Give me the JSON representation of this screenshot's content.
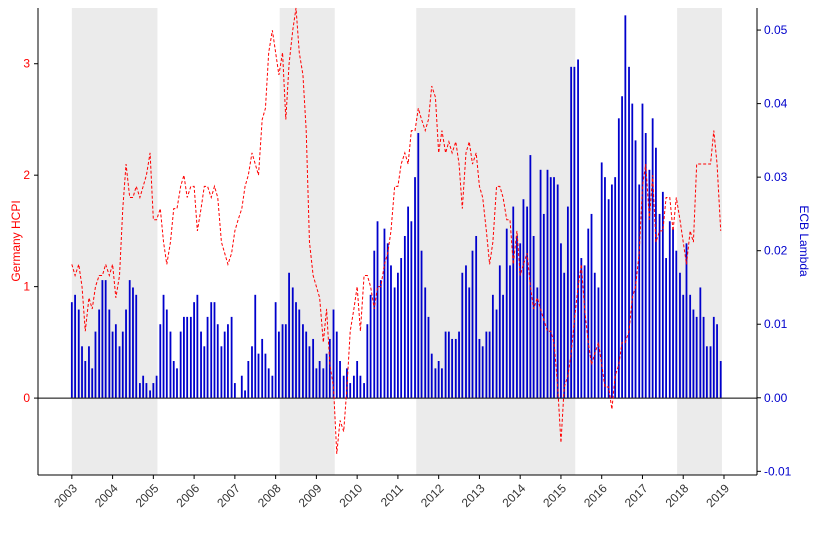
{
  "chart_data": {
    "type": "combo",
    "y_label": "Germany HCPI",
    "y2_label": "ECB Lambda",
    "xlim": [
      2002.17,
      2019.81
    ],
    "xticks": [
      2003,
      2004,
      2005,
      2006,
      2007,
      2008,
      2009,
      2010,
      2011,
      2012,
      2013,
      2014,
      2015,
      2016,
      2017,
      2018,
      2019
    ],
    "ylim": [
      -0.69,
      3.5
    ],
    "yticks": [
      0,
      1,
      2,
      3
    ],
    "y2lim": [
      -0.0105,
      0.053
    ],
    "y2ticks": [
      {
        "value": -0.01,
        "label": "-0.01"
      },
      {
        "value": 0,
        "label": "0.00"
      },
      {
        "value": 0.01,
        "label": "0.01"
      },
      {
        "value": 0.02,
        "label": "0.02"
      },
      {
        "value": 0.03,
        "label": "0.03"
      },
      {
        "value": 0.04,
        "label": "0.04"
      },
      {
        "value": 0.05,
        "label": "0.05"
      }
    ],
    "shaded_periods": [
      [
        2003.0,
        2005.1
      ],
      [
        2008.1,
        2009.45
      ],
      [
        2011.45,
        2015.35
      ],
      [
        2017.85,
        2018.95
      ]
    ],
    "x": [
      2003.0,
      2003.08,
      2003.17,
      2003.25,
      2003.33,
      2003.42,
      2003.5,
      2003.58,
      2003.67,
      2003.75,
      2003.83,
      2003.92,
      2004.0,
      2004.08,
      2004.17,
      2004.25,
      2004.33,
      2004.42,
      2004.5,
      2004.58,
      2004.67,
      2004.75,
      2004.83,
      2004.92,
      2005.0,
      2005.08,
      2005.17,
      2005.25,
      2005.33,
      2005.42,
      2005.5,
      2005.58,
      2005.67,
      2005.75,
      2005.83,
      2005.92,
      2006.0,
      2006.08,
      2006.17,
      2006.25,
      2006.33,
      2006.42,
      2006.5,
      2006.58,
      2006.67,
      2006.75,
      2006.83,
      2006.92,
      2007.0,
      2007.08,
      2007.17,
      2007.25,
      2007.33,
      2007.42,
      2007.5,
      2007.58,
      2007.67,
      2007.75,
      2007.83,
      2007.92,
      2008.0,
      2008.08,
      2008.17,
      2008.25,
      2008.33,
      2008.42,
      2008.5,
      2008.58,
      2008.67,
      2008.75,
      2008.83,
      2008.92,
      2009.0,
      2009.08,
      2009.17,
      2009.25,
      2009.33,
      2009.42,
      2009.5,
      2009.58,
      2009.67,
      2009.75,
      2009.83,
      2009.92,
      2010.0,
      2010.08,
      2010.17,
      2010.25,
      2010.33,
      2010.42,
      2010.5,
      2010.58,
      2010.67,
      2010.75,
      2010.83,
      2010.92,
      2011.0,
      2011.08,
      2011.17,
      2011.25,
      2011.33,
      2011.42,
      2011.5,
      2011.58,
      2011.67,
      2011.75,
      2011.83,
      2011.92,
      2012.0,
      2012.08,
      2012.17,
      2012.25,
      2012.33,
      2012.42,
      2012.5,
      2012.58,
      2012.67,
      2012.75,
      2012.83,
      2012.92,
      2013.0,
      2013.08,
      2013.17,
      2013.25,
      2013.33,
      2013.42,
      2013.5,
      2013.58,
      2013.67,
      2013.75,
      2013.83,
      2013.92,
      2014.0,
      2014.08,
      2014.17,
      2014.25,
      2014.33,
      2014.42,
      2014.5,
      2014.58,
      2014.67,
      2014.75,
      2014.83,
      2014.92,
      2015.0,
      2015.08,
      2015.17,
      2015.25,
      2015.33,
      2015.42,
      2015.5,
      2015.58,
      2015.67,
      2015.75,
      2015.83,
      2015.92,
      2016.0,
      2016.08,
      2016.17,
      2016.25,
      2016.33,
      2016.42,
      2016.5,
      2016.58,
      2016.67,
      2016.75,
      2016.83,
      2016.92,
      2017.0,
      2017.08,
      2017.17,
      2017.25,
      2017.33,
      2017.42,
      2017.5,
      2017.58,
      2017.67,
      2017.75,
      2017.83,
      2017.92,
      2018.0,
      2018.08,
      2018.17,
      2018.25,
      2018.33,
      2018.42,
      2018.5,
      2018.58,
      2018.67,
      2018.75,
      2018.83,
      2018.92
    ],
    "series": [
      {
        "type": "bar",
        "axis": "y2",
        "color": "#0000cc",
        "values": [
          0.013,
          0.014,
          0.012,
          0.007,
          0.005,
          0.007,
          0.004,
          0.009,
          0.012,
          0.016,
          0.016,
          0.012,
          0.009,
          0.01,
          0.007,
          0.009,
          0.012,
          0.016,
          0.015,
          0.014,
          0.002,
          0.003,
          0.002,
          0.001,
          0.002,
          0.003,
          0.01,
          0.014,
          0.012,
          0.009,
          0.005,
          0.004,
          0.009,
          0.011,
          0.011,
          0.011,
          0.013,
          0.014,
          0.009,
          0.007,
          0.011,
          0.013,
          0.013,
          0.01,
          0.007,
          0.009,
          0.01,
          0.011,
          0.002,
          0,
          0.003,
          0.001,
          0.005,
          0.007,
          0.014,
          0.006,
          0.008,
          0.006,
          0.004,
          0.003,
          0.013,
          0.009,
          0.01,
          0.01,
          0.017,
          0.015,
          0.013,
          0.012,
          0.01,
          0.009,
          0.007,
          0.008,
          0.004,
          0.005,
          0.004,
          0.006,
          0.008,
          0.012,
          0.009,
          0.005,
          0.003,
          0.004,
          0.002,
          0.003,
          0.005,
          0.003,
          0.002,
          0.01,
          0.014,
          0.02,
          0.024,
          0.016,
          0.023,
          0.021,
          0.018,
          0.015,
          0.017,
          0.019,
          0.022,
          0.026,
          0.024,
          0.03,
          0.036,
          0.02,
          0.015,
          0.011,
          0.006,
          0.004,
          0.005,
          0.004,
          0.009,
          0.009,
          0.008,
          0.008,
          0.009,
          0.017,
          0.018,
          0.015,
          0.02,
          0.022,
          0.008,
          0.007,
          0.009,
          0.009,
          0.014,
          0.012,
          0.018,
          0.014,
          0.023,
          0.018,
          0.026,
          0.022,
          0.021,
          0.027,
          0.026,
          0.033,
          0.022,
          0.015,
          0.031,
          0.025,
          0.031,
          0.03,
          0.03,
          0.029,
          0.021,
          0.017,
          0.026,
          0.045,
          0.045,
          0.046,
          0.019,
          0.018,
          0.023,
          0.025,
          0.017,
          0.015,
          0.032,
          0.03,
          0.027,
          0.029,
          0.03,
          0.038,
          0.041,
          0.052,
          0.045,
          0.04,
          0.035,
          0.029,
          0.04,
          0.036,
          0.031,
          0.038,
          0.034,
          0.025,
          0.028,
          0.019,
          0.024,
          0.023,
          0.02,
          0.017,
          0.014,
          0.021,
          0.014,
          0.012,
          0.011,
          0.015,
          0.011,
          0.007,
          0.007,
          0.011,
          0.01,
          0.005
        ]
      },
      {
        "type": "line",
        "axis": "y",
        "color": "#ff0000",
        "values": [
          1.2,
          1.1,
          1.2,
          1.0,
          0.6,
          0.9,
          0.8,
          1.0,
          1.1,
          1.1,
          1.2,
          1.1,
          1.2,
          0.9,
          1.1,
          1.7,
          2.1,
          1.8,
          1.8,
          1.9,
          1.8,
          1.9,
          2.0,
          2.2,
          1.6,
          1.6,
          1.7,
          1.4,
          1.2,
          1.4,
          1.7,
          1.7,
          1.9,
          2.0,
          1.8,
          1.9,
          1.9,
          1.5,
          1.7,
          1.9,
          1.9,
          1.8,
          1.9,
          1.8,
          1.4,
          1.3,
          1.2,
          1.3,
          1.5,
          1.6,
          1.7,
          1.9,
          2.0,
          2.2,
          2.1,
          2.0,
          2.5,
          2.6,
          3.1,
          3.3,
          3.1,
          2.9,
          3.1,
          2.5,
          3.0,
          3.3,
          3.5,
          3.1,
          2.9,
          2.4,
          1.4,
          1.1,
          1.0,
          0.9,
          0.5,
          0.8,
          0.3,
          0.1,
          -0.5,
          -0.2,
          -0.3,
          0.1,
          0.6,
          0.8,
          1.0,
          0.6,
          1.1,
          1.1,
          1.0,
          0.8,
          1.0,
          1.0,
          1.2,
          1.3,
          1.5,
          1.9,
          1.9,
          2.1,
          2.2,
          2.1,
          2.4,
          2.4,
          2.6,
          2.5,
          2.4,
          2.5,
          2.8,
          2.7,
          2.2,
          2.4,
          2.2,
          2.3,
          2.2,
          2.3,
          2.1,
          1.7,
          2.2,
          2.3,
          2.1,
          2.2,
          1.9,
          1.8,
          1.5,
          1.2,
          1.4,
          1.9,
          1.9,
          1.8,
          1.6,
          1.6,
          1.2,
          1.5,
          1.1,
          1.2,
          1.3,
          1.0,
          0.8,
          0.9,
          0.8,
          0.7,
          0.6,
          0.6,
          0.5,
          0.1,
          -0.4,
          0.1,
          0.2,
          0.4,
          0.7,
          1.0,
          1.2,
          0.8,
          0.5,
          0.3,
          0.4,
          0.5,
          0.3,
          0.1,
          0.1,
          -0.1,
          0.2,
          0.3,
          0.5,
          0.5,
          0.6,
          0.9,
          1.0,
          1.3,
          1.9,
          2.1,
          1.6,
          2.0,
          1.4,
          1.5,
          1.5,
          1.8,
          1.8,
          1.5,
          1.8,
          1.6,
          1.4,
          1.2,
          1.5,
          1.4,
          2.1,
          2.1,
          2.1,
          2.1,
          2.1,
          2.4,
          2.1,
          1.5
        ]
      }
    ]
  }
}
